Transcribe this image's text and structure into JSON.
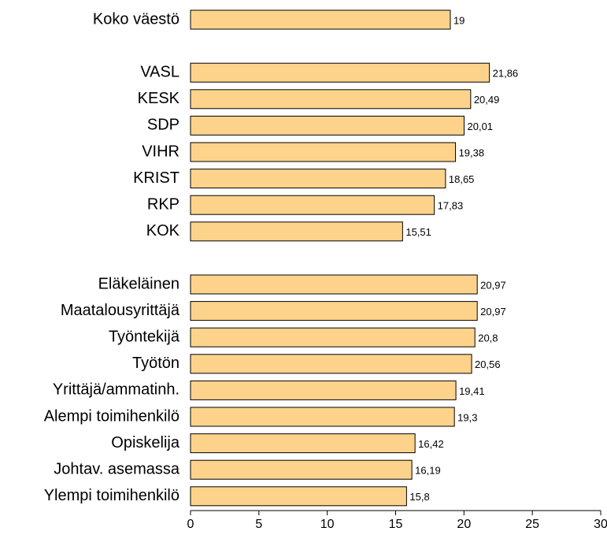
{
  "chart_data": {
    "type": "bar",
    "orientation": "horizontal",
    "categories": [
      "Koko väestö",
      null,
      "VASL",
      "KESK",
      "SDP",
      "VIHR",
      "KRIST",
      "RKP",
      "KOK",
      null,
      "Eläkeläinen",
      "Maatalousyrittäjä",
      "Työntekijä",
      "Työtön",
      "Yrittäjä/ammatinh.",
      "Alempi toimihenkilö",
      "Opiskelija",
      "Johtav. asemassa",
      "Ylempi toimihenkilö"
    ],
    "values": [
      19,
      null,
      21.86,
      20.49,
      20.01,
      19.38,
      18.65,
      17.83,
      15.51,
      null,
      20.97,
      20.97,
      20.8,
      20.56,
      19.41,
      19.3,
      16.42,
      16.19,
      15.8
    ],
    "value_labels": [
      "19",
      null,
      "21,86",
      "20,49",
      "20,01",
      "19,38",
      "18,65",
      "17,83",
      "15,51",
      null,
      "20,97",
      "20,97",
      "20,8",
      "20,56",
      "19,41",
      "19,3",
      "16,42",
      "16,19",
      "15,8"
    ],
    "color": "#fdd38c",
    "xlim": [
      0,
      30
    ],
    "xticks": [
      0,
      5,
      10,
      15,
      20,
      25,
      30
    ]
  }
}
